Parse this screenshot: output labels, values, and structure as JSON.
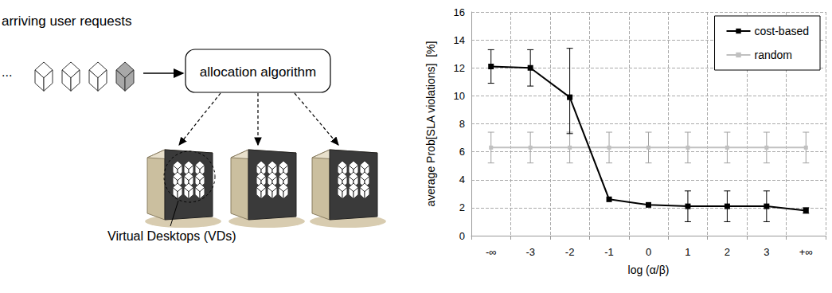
{
  "diagram": {
    "input_label": "arriving user requests",
    "ellipsis": "...",
    "node": "allocation algorithm",
    "callout": "Virtual Desktops (VDs)"
  },
  "chart_data": {
    "type": "line",
    "x_label": "log (α/β)",
    "y_label": "average Prob[SLA violations]  [%]",
    "categories": [
      "-∞",
      "-3",
      "-2",
      "-1",
      "0",
      "1",
      "2",
      "3",
      "+∞"
    ],
    "series": [
      {
        "name": "cost-based",
        "color": "#000000",
        "marker": "square",
        "line_style": "solid",
        "values": [
          12.1,
          12.0,
          9.9,
          2.6,
          2.2,
          2.1,
          2.1,
          2.1,
          1.8
        ],
        "error": [
          [
            10.9,
            13.3
          ],
          [
            10.7,
            13.3
          ],
          [
            7.3,
            13.4
          ],
          null,
          null,
          [
            1.0,
            3.2
          ],
          [
            1.0,
            3.2
          ],
          [
            1.0,
            3.2
          ],
          [
            1.6,
            2.0
          ]
        ]
      },
      {
        "name": "random",
        "color": "#c0c0c0",
        "marker": "square",
        "line_style": "solid",
        "values": [
          6.3,
          6.3,
          6.3,
          6.3,
          6.3,
          6.3,
          6.3,
          6.3,
          6.3
        ],
        "error": [
          [
            5.2,
            7.4
          ],
          [
            5.2,
            7.4
          ],
          [
            5.2,
            7.4
          ],
          [
            5.2,
            7.4
          ],
          [
            5.2,
            7.4
          ],
          [
            5.2,
            7.4
          ],
          [
            5.2,
            7.4
          ],
          [
            5.2,
            7.4
          ],
          [
            5.2,
            7.4
          ]
        ]
      }
    ],
    "ylim": [
      0,
      16
    ],
    "yticks": [
      0,
      2,
      4,
      6,
      8,
      10,
      12,
      14,
      16
    ],
    "grid": true,
    "legend": "upper right"
  }
}
